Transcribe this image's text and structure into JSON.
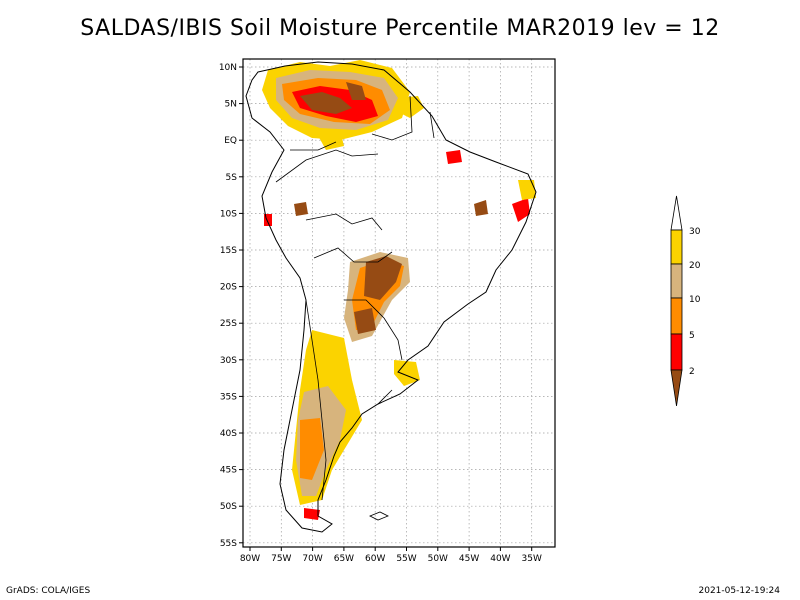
{
  "title": "SALDAS/IBIS Soil Moisture Percentile MAR2019 lev = 12",
  "lat_labels": [
    "10N",
    "5N",
    "EQ",
    "5S",
    "10S",
    "15S",
    "20S",
    "25S",
    "30S",
    "35S",
    "40S",
    "45S",
    "50S",
    "55S"
  ],
  "lon_labels": [
    "80W",
    "75W",
    "70W",
    "65W",
    "60W",
    "55W",
    "50W",
    "45W",
    "40W",
    "35W"
  ],
  "colorbar": {
    "labels": [
      "30",
      "20",
      "10",
      "5",
      "2"
    ],
    "colors": {
      "c30": "#ffffff",
      "c20_30": "#fbd300",
      "c10_20": "#d7b47d",
      "c5_10": "#ff8c00",
      "c2_5": "#ff0000",
      "c0_2": "#964b14"
    }
  },
  "footer": {
    "left": "GrADS: COLA/IGES",
    "right": "2021-05-12-19:24"
  }
}
